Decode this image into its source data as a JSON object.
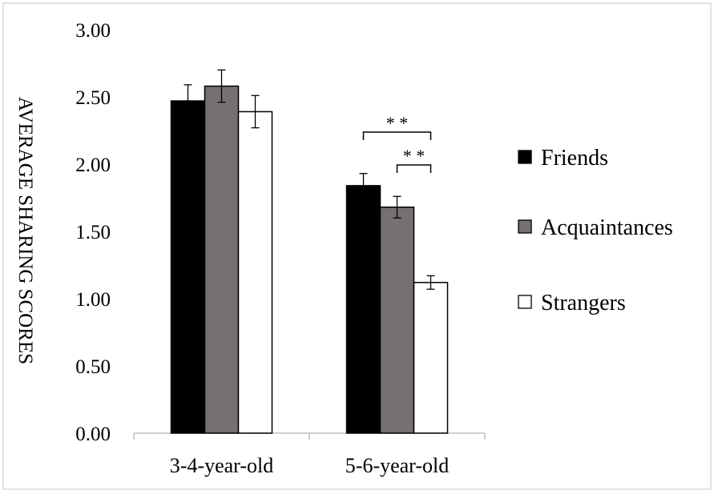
{
  "chart_data": {
    "type": "bar",
    "title": "",
    "xlabel": "",
    "ylabel": "AVERAGE SHARING SCORES",
    "ylim": [
      0,
      3
    ],
    "yticks": [
      "0.00",
      "0.50",
      "1.00",
      "1.50",
      "2.00",
      "2.50",
      "3.00"
    ],
    "grid": false,
    "legend_position": "right",
    "categories": [
      "3-4-year-old",
      "5-6-year-old"
    ],
    "series": [
      {
        "name": "Friends",
        "color": "#000000",
        "values": [
          2.47,
          1.84
        ],
        "error": [
          0.12,
          0.09
        ]
      },
      {
        "name": "Acquaintances",
        "color": "#767171",
        "values": [
          2.58,
          1.68
        ],
        "error": [
          0.12,
          0.08
        ]
      },
      {
        "name": "Strangers",
        "color": "#ffffff",
        "values": [
          2.39,
          1.12
        ],
        "error": [
          0.12,
          0.05
        ]
      }
    ],
    "annotations": [
      {
        "text": "* *",
        "category": "5-6-year-old",
        "from_series": "Friends",
        "to_series": "Strangers"
      },
      {
        "text": "* *",
        "category": "5-6-year-old",
        "from_series": "Acquaintances",
        "to_series": "Strangers"
      }
    ]
  }
}
